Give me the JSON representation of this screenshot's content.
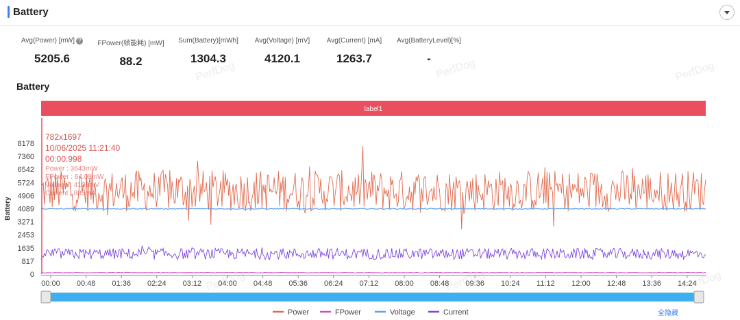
{
  "header": {
    "title": "Battery"
  },
  "metrics": [
    {
      "label": "Avg(Power) [mW]",
      "value": "5205.6",
      "has_help": true
    },
    {
      "label": "FPower(帧能耗) [mW]",
      "value": "88.2"
    },
    {
      "label": "Sum(Battery)[mWh]",
      "value": "1304.3"
    },
    {
      "label": "Avg(Voltage) [mV]",
      "value": "4120.1"
    },
    {
      "label": "Avg(Current) [mA]",
      "value": "1263.7"
    },
    {
      "label": "Avg(BatteryLevel)[%]",
      "value": "-"
    }
  ],
  "section_title": "Battery",
  "watermark": "PerfDog",
  "hide_all_label": "全隐藏",
  "colors": {
    "accent": "#3b7ff6",
    "label_band": "#e94f5f",
    "power": "#e06a4e",
    "fpower": "#c94fc8",
    "voltage": "#5ea0ec",
    "current": "#7b45e0",
    "slider": "#3fb0ef"
  },
  "chart_data": {
    "type": "line",
    "title": "",
    "xlabel": "",
    "ylabel": "Battery",
    "yticks": [
      0,
      817,
      1635,
      2453,
      3271,
      4089,
      4906,
      5724,
      6542,
      7360,
      8178
    ],
    "ylim": [
      0,
      8178
    ],
    "xticks": [
      "00:00",
      "00:48",
      "01:36",
      "02:24",
      "03:12",
      "04:00",
      "04:48",
      "05:36",
      "06:24",
      "07:12",
      "08:00",
      "08:48",
      "09:36",
      "10:24",
      "11:12",
      "12:00",
      "12:48",
      "13:36",
      "14:24"
    ],
    "x_range_seconds": [
      0,
      907
    ],
    "grid": false,
    "legend_position": "bottom",
    "label_band": "label1",
    "tooltip": {
      "lines": [
        "782x1697",
        "10/06/2025 11:21:40",
        "00:00:998"
      ],
      "series_values": [
        "Power : 3643mW",
        "FPower : 64.08mW",
        "Voltage : 4108mV",
        "Current : 885mA"
      ]
    },
    "series": [
      {
        "name": "Power",
        "unit": "mW",
        "approx_mean": 5206,
        "approx_range": [
          2800,
          8000
        ],
        "shape": "noisy"
      },
      {
        "name": "FPower",
        "unit": "mW",
        "approx_mean": 88,
        "shape": "flat"
      },
      {
        "name": "Voltage",
        "unit": "mV",
        "approx_mean": 4120,
        "approx_range": [
          4040,
          4150
        ],
        "shape": "flat"
      },
      {
        "name": "Current",
        "unit": "mA",
        "approx_mean": 1264,
        "approx_range": [
          700,
          1900
        ],
        "shape": "noisy"
      }
    ]
  }
}
